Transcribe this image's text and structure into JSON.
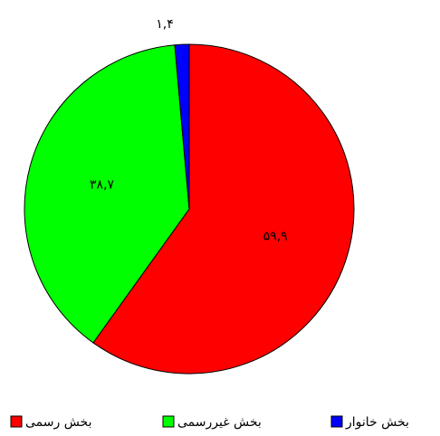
{
  "chart_data": {
    "type": "pie",
    "categories": [
      "بخش رسمی",
      "بخش غیررسمی",
      "بخش خانوار"
    ],
    "values": [
      59.9,
      38.7,
      1.4
    ],
    "value_labels": [
      "۵۹,۹",
      "۳۸,۷",
      "۱,۴"
    ],
    "colors": [
      "#ff0000",
      "#00ff00",
      "#0000ff"
    ],
    "legend": "bottom"
  }
}
